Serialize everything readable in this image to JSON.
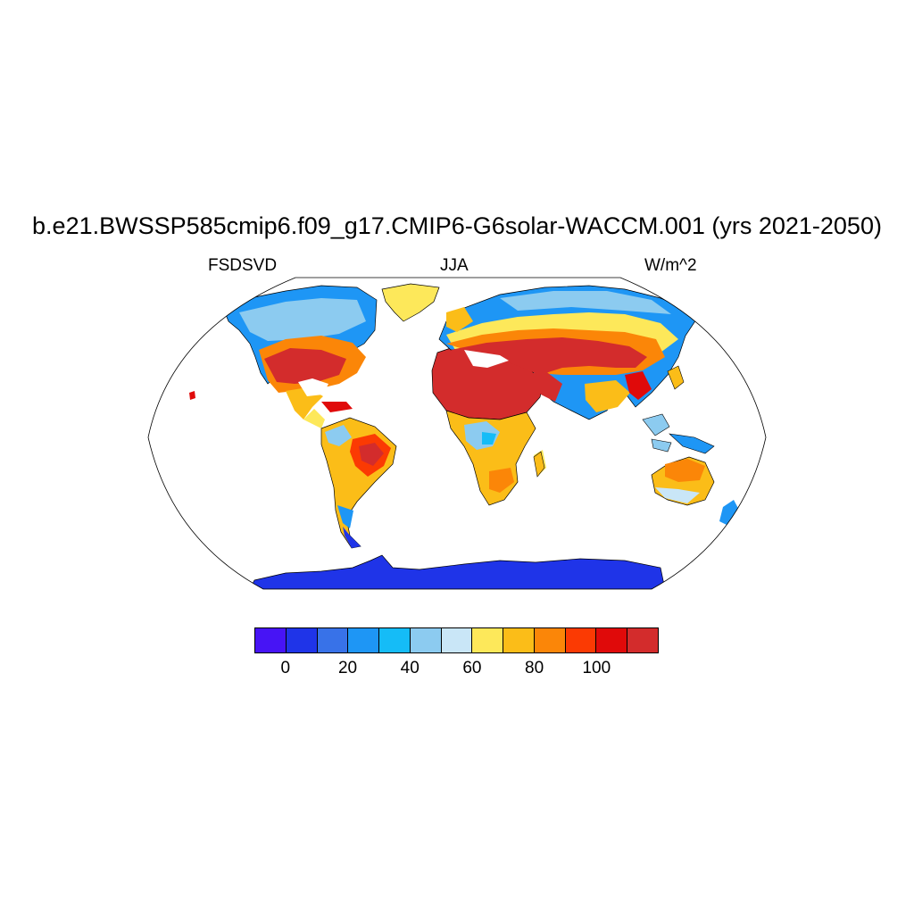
{
  "figure": {
    "title": "b.e21.BWSSP585cmip6.f09_g17.CMIP6-G6solar-WACCM.001 (yrs 2021-2050)",
    "left_label": "FSDSVD",
    "center_label": "JJA",
    "right_label": "W/m^2"
  },
  "map": {
    "projection": "Robinson",
    "background": "#ffffff",
    "coastline_color": "#000000"
  },
  "colorbar": {
    "colors": [
      "#4714f5",
      "#1f34e8",
      "#3872e8",
      "#1e96f5",
      "#15bcf7",
      "#8ccbf0",
      "#c9e6f7",
      "#fde85a",
      "#fbbd18",
      "#fb8608",
      "#fb3a03",
      "#e00a0a",
      "#d32c2c"
    ],
    "levels": [
      0,
      10,
      20,
      30,
      40,
      50,
      60,
      70,
      80,
      90,
      100,
      110
    ],
    "tick_labels": [
      "0",
      "20",
      "40",
      "60",
      "80",
      "100"
    ]
  }
}
